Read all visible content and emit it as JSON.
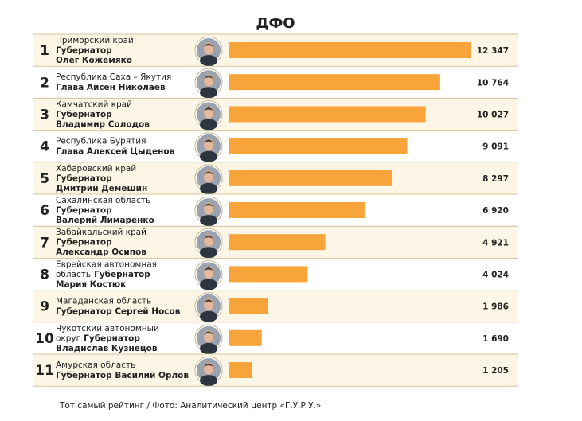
{
  "chart_data": {
    "type": "bar",
    "orientation": "horizontal",
    "title": "ДФО",
    "color": "#f7a43a",
    "rows": [
      {
        "rank": "1",
        "lines": [
          [
            {
              "text": "Приморский край",
              "bold": false
            }
          ],
          [
            {
              "text": "Губернатор",
              "bold": true
            }
          ],
          [
            {
              "text": "Олег Кожемяко",
              "bold": true
            }
          ]
        ]
      },
      {
        "rank": "2",
        "lines": [
          [
            {
              "text": "Республика Саха – Якутия",
              "bold": false
            }
          ],
          [
            {
              "text": "Глава Айсен Николаев",
              "bold": true
            }
          ]
        ]
      },
      {
        "rank": "3",
        "lines": [
          [
            {
              "text": "Камчатский край",
              "bold": false
            }
          ],
          [
            {
              "text": "Губернатор",
              "bold": true
            }
          ],
          [
            {
              "text": "Владимир Солодов",
              "bold": true
            }
          ]
        ]
      },
      {
        "rank": "4",
        "lines": [
          [
            {
              "text": "Республика Бурятия",
              "bold": false
            }
          ],
          [
            {
              "text": "Глава Алексей Цыденов",
              "bold": true
            }
          ]
        ]
      },
      {
        "rank": "5",
        "lines": [
          [
            {
              "text": "Хабаровский край",
              "bold": false
            }
          ],
          [
            {
              "text": "Губернатор",
              "bold": true
            }
          ],
          [
            {
              "text": "Дмитрий Демешин",
              "bold": true
            }
          ]
        ]
      },
      {
        "rank": "6",
        "lines": [
          [
            {
              "text": "Сахалинская область",
              "bold": false
            }
          ],
          [
            {
              "text": "Губернатор",
              "bold": true
            }
          ],
          [
            {
              "text": "Валерий Лимаренко",
              "bold": true
            }
          ]
        ]
      },
      {
        "rank": "7",
        "lines": [
          [
            {
              "text": "Забайкальский край",
              "bold": false
            }
          ],
          [
            {
              "text": "Губернатор",
              "bold": true
            }
          ],
          [
            {
              "text": "Александр Осипов",
              "bold": true
            }
          ]
        ]
      },
      {
        "rank": "8",
        "lines": [
          [
            {
              "text": "Еврейская автономная",
              "bold": false
            }
          ],
          [
            {
              "text": "область",
              "bold": false
            },
            {
              "text": "Губернатор",
              "bold": true
            }
          ],
          [
            {
              "text": "Мария Костюк",
              "bold": true
            }
          ]
        ]
      },
      {
        "rank": "9",
        "lines": [
          [
            {
              "text": "Магаданская область",
              "bold": false
            }
          ],
          [
            {
              "text": "Губернатор Сергей Носов",
              "bold": true
            }
          ]
        ]
      },
      {
        "rank": "10",
        "lines": [
          [
            {
              "text": "Чукотский автономный",
              "bold": false
            }
          ],
          [
            {
              "text": "округ",
              "bold": false
            },
            {
              "text": "Губернатор",
              "bold": true
            }
          ],
          [
            {
              "text": "Владислав Кузнецов",
              "bold": true
            }
          ]
        ]
      },
      {
        "rank": "11",
        "lines": [
          [
            {
              "text": "Амурская область",
              "bold": false
            }
          ],
          [
            {
              "text": "Губернатор Василий Орлов",
              "bold": true
            }
          ]
        ]
      }
    ],
    "values": [
      12347,
      10764,
      10027,
      9091,
      8297,
      6920,
      4921,
      4024,
      1986,
      1690,
      1205
    ],
    "value_labels": [
      "12 347",
      "10 764",
      "10 027",
      "9 091",
      "8 297",
      "6 920",
      "4 921",
      "4 024",
      "1 986",
      "1 690",
      "1 205"
    ],
    "source": "Тот самый рейтинг / Фото: Аналитический центр «Г.У.Р.У.»"
  }
}
